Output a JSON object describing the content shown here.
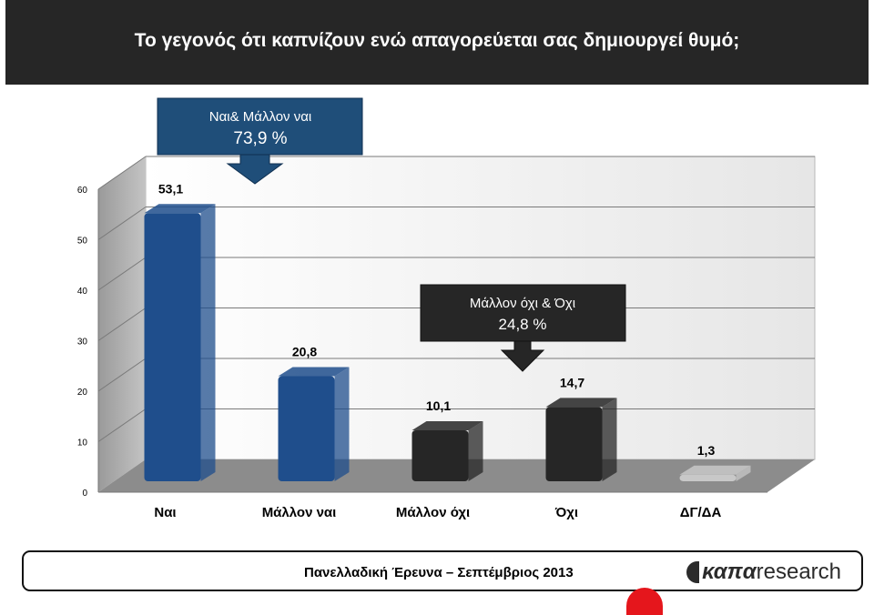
{
  "header": {
    "title": "Το γεγονός ότι καπνίζουν ενώ απαγορεύεται σας δημιουργεί θυμό;"
  },
  "callouts": {
    "yes_total": {
      "label": "Ναι& Μάλλον ναι",
      "value": "73,9 %",
      "color": "#1f4e79"
    },
    "no_total": {
      "label": "Μάλλον όχι & Όχι",
      "value": "24,8 %",
      "color": "#262626"
    }
  },
  "chart_data": {
    "type": "bar",
    "categories": [
      "Ναι",
      "Μάλλον ναι",
      "Μάλλον όχι",
      "Όχι",
      "ΔΓ/ΔΑ"
    ],
    "values": [
      53.1,
      20.8,
      10.1,
      14.7,
      1.3
    ],
    "data_labels": [
      "53,1",
      "20,8",
      "10,1",
      "14,7",
      "1,3"
    ],
    "bar_colors": [
      "#1f4e8c",
      "#1f4e8c",
      "#262626",
      "#262626",
      "#c8c8c8"
    ],
    "ylim": [
      0,
      60
    ],
    "yticks": [
      0,
      10,
      20,
      30,
      40,
      50,
      60
    ],
    "grid": true,
    "title": "",
    "xlabel": "",
    "ylabel": ""
  },
  "footer": {
    "survey_text": "Πανελλαδική Έρευνα – Σεπτέμβριος 2013",
    "logo_bold": "καπα",
    "logo_thin": "research"
  }
}
